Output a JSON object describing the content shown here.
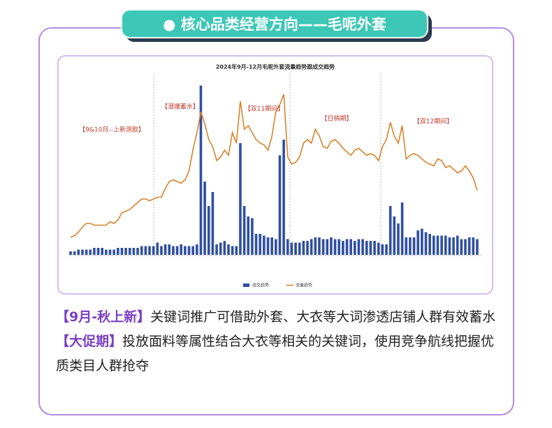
{
  "header": {
    "title": "● 核心品类经营方向——毛呢外套"
  },
  "chart": {
    "type": "bar_line",
    "title": "2024年9月-12月毛呢外套流量趋势跟成交趋势",
    "ylim": [
      0,
      100
    ],
    "annotations": [
      "【9&10月--上新测款】",
      "【潜爆蓄水】",
      "【双11期间】",
      "【日销期】",
      "【双12期间】"
    ],
    "series": [
      {
        "name": "成交趋势",
        "kind": "bar",
        "color": "#2f4fa3",
        "values": [
          2,
          2,
          3,
          3,
          3,
          3,
          4,
          4,
          4,
          3,
          3,
          3,
          4,
          4,
          4,
          4,
          4,
          4,
          5,
          5,
          5,
          5,
          7,
          5,
          6,
          6,
          5,
          5,
          6,
          5,
          5,
          5,
          6,
          97,
          42,
          28,
          36,
          6,
          7,
          8,
          6,
          5,
          5,
          64,
          28,
          22,
          21,
          12,
          12,
          11,
          10,
          10,
          9,
          57,
          66,
          9,
          7,
          7,
          7,
          8,
          8,
          9,
          10,
          10,
          9,
          9,
          10,
          9,
          9,
          8,
          9,
          9,
          8,
          9,
          9,
          8,
          8,
          8,
          7,
          6,
          6,
          28,
          22,
          18,
          30,
          10,
          10,
          10,
          14,
          15,
          13,
          12,
          11,
          11,
          11,
          11,
          10,
          10,
          11,
          9,
          9,
          10,
          10,
          9
        ]
      },
      {
        "name": "流量趋势",
        "kind": "line",
        "color": "#d9822b",
        "values": [
          10,
          11,
          13,
          16,
          18,
          18,
          17,
          17,
          17,
          17,
          19,
          18,
          20,
          24,
          25,
          26,
          28,
          30,
          32,
          32,
          31,
          32,
          33,
          33,
          38,
          42,
          43,
          42,
          41,
          43,
          48,
          60,
          70,
          82,
          75,
          66,
          62,
          54,
          56,
          60,
          57,
          70,
          64,
          88,
          72,
          74,
          70,
          66,
          64,
          63,
          60,
          68,
          82,
          86,
          92,
          56,
          52,
          53,
          56,
          64,
          66,
          64,
          72,
          68,
          62,
          61,
          65,
          66,
          64,
          61,
          59,
          57,
          60,
          61,
          59,
          57,
          58,
          57,
          54,
          62,
          66,
          76,
          68,
          64,
          74,
          55,
          57,
          58,
          57,
          55,
          53,
          52,
          51,
          55,
          54,
          50,
          51,
          49,
          47,
          48,
          51,
          48,
          44,
          37
        ]
      }
    ]
  },
  "paragraphs": [
    {
      "tag": "【9月-秋上新】",
      "text": "关键词推广可借助外套、大衣等大词渗透店铺人群有效蓄水"
    },
    {
      "tag": "【大促期】",
      "text": "投放面料等属性结合大衣等相关的关键词，使用竞争航线把握优质类目人群抢夺"
    }
  ]
}
